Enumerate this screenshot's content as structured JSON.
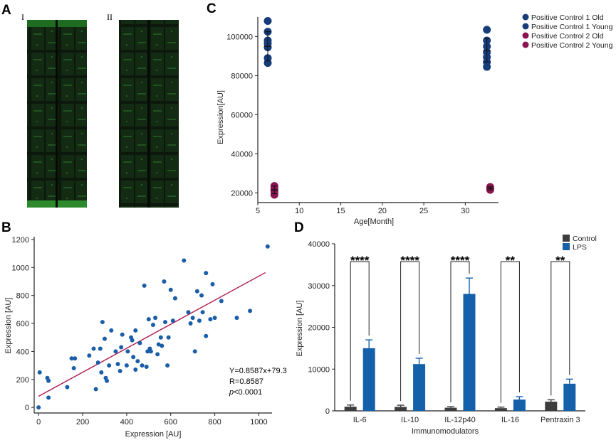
{
  "panels": {
    "A": {
      "letter": "A",
      "image_labels": [
        "I",
        "II"
      ]
    },
    "B": {
      "letter": "B"
    },
    "C": {
      "letter": "C"
    },
    "D": {
      "letter": "D"
    }
  },
  "colors": {
    "blue": "#1a5da8",
    "navy": "#173c7a",
    "magenta": "#8a1450",
    "fit_line": "#b0184e",
    "control_bar": "#3d3d3d",
    "lps_bar": "#1560aa",
    "array_bg": "#0d1a0d",
    "array_spot": "#2a6a2a"
  },
  "chart_data": [
    {
      "id": "B",
      "type": "scatter",
      "xlabel": "Expression [AU]",
      "ylabel": "Expression [AU]",
      "xlim": [
        -20,
        1060
      ],
      "ylim": [
        -40,
        1220
      ],
      "xticks": [
        0,
        200,
        400,
        600,
        800,
        1000
      ],
      "yticks": [
        0,
        200,
        400,
        600,
        800,
        1000,
        1200
      ],
      "fit": {
        "slope": 0.8587,
        "intercept": 79.3,
        "x_range": [
          0,
          1030
        ]
      },
      "annotations": [
        "Y=0.8587x+79.3",
        "R=0.8587",
        "p",
        "<0.0001"
      ],
      "points": [
        [
          0,
          0
        ],
        [
          5,
          250
        ],
        [
          40,
          210
        ],
        [
          45,
          190
        ],
        [
          45,
          70
        ],
        [
          130,
          145
        ],
        [
          150,
          350
        ],
        [
          160,
          280
        ],
        [
          165,
          350
        ],
        [
          230,
          370
        ],
        [
          250,
          420
        ],
        [
          260,
          130
        ],
        [
          270,
          320
        ],
        [
          280,
          420
        ],
        [
          285,
          250
        ],
        [
          290,
          610
        ],
        [
          300,
          490
        ],
        [
          305,
          210
        ],
        [
          310,
          190
        ],
        [
          320,
          300
        ],
        [
          330,
          550
        ],
        [
          350,
          400
        ],
        [
          360,
          310
        ],
        [
          370,
          260
        ],
        [
          375,
          430
        ],
        [
          380,
          520
        ],
        [
          400,
          300
        ],
        [
          405,
          400
        ],
        [
          420,
          500
        ],
        [
          425,
          480
        ],
        [
          430,
          360
        ],
        [
          440,
          270
        ],
        [
          440,
          550
        ],
        [
          450,
          330
        ],
        [
          460,
          460
        ],
        [
          470,
          300
        ],
        [
          480,
          870
        ],
        [
          490,
          290
        ],
        [
          495,
          400
        ],
        [
          500,
          630
        ],
        [
          505,
          420
        ],
        [
          510,
          400
        ],
        [
          520,
          590
        ],
        [
          530,
          640
        ],
        [
          540,
          380
        ],
        [
          545,
          450
        ],
        [
          555,
          500
        ],
        [
          560,
          440
        ],
        [
          570,
          900
        ],
        [
          575,
          610
        ],
        [
          585,
          300
        ],
        [
          590,
          500
        ],
        [
          600,
          840
        ],
        [
          610,
          620
        ],
        [
          620,
          780
        ],
        [
          660,
          1050
        ],
        [
          680,
          680
        ],
        [
          690,
          600
        ],
        [
          700,
          640
        ],
        [
          710,
          400
        ],
        [
          720,
          830
        ],
        [
          730,
          620
        ],
        [
          740,
          800
        ],
        [
          745,
          680
        ],
        [
          760,
          510
        ],
        [
          760,
          960
        ],
        [
          780,
          630
        ],
        [
          790,
          880
        ],
        [
          800,
          640
        ],
        [
          830,
          760
        ],
        [
          900,
          640
        ],
        [
          960,
          690
        ],
        [
          1040,
          1150
        ]
      ]
    },
    {
      "id": "C",
      "type": "scatter",
      "xlabel": "Age[Month]",
      "ylabel": "Expression[AU]",
      "xlim": [
        5,
        34
      ],
      "ylim": [
        15000,
        110000
      ],
      "xticks": [
        5,
        10,
        15,
        20,
        25,
        30
      ],
      "yticks": [
        20000,
        40000,
        60000,
        80000,
        100000
      ],
      "series": [
        {
          "name": "Positive Control 1 Old",
          "color": "#173c7a",
          "points": [
            [
              32.6,
              103500
            ],
            [
              32.6,
              98000
            ],
            [
              32.6,
              95000
            ],
            [
              32.6,
              92000
            ],
            [
              32.6,
              89500
            ],
            [
              32.6,
              87000
            ],
            [
              32.6,
              84500
            ]
          ],
          "mean_x": 32.6,
          "mean": 93000,
          "sd": 6000
        },
        {
          "name": "Positive Control 1 Young",
          "color": "#173c7a",
          "points": [
            [
              6.2,
              108000
            ],
            [
              6.2,
              102500
            ],
            [
              6.2,
              98000
            ],
            [
              6.2,
              96500
            ],
            [
              6.2,
              94500
            ],
            [
              6.2,
              89000
            ],
            [
              6.2,
              86500
            ]
          ],
          "mean_x": 6.2,
          "mean": 95000,
          "sd": 7500
        },
        {
          "name": "Positive Control 2 Old",
          "color": "#8a1450",
          "points": [
            [
              33.0,
              23000
            ],
            [
              33.0,
              22000
            ],
            [
              33.0,
              21500
            ]
          ],
          "mean_x": 33.0,
          "mean": 22300,
          "sd": 800
        },
        {
          "name": "Positive Control 2 Young",
          "color": "#8a1450",
          "points": [
            [
              7.0,
              23500
            ],
            [
              7.0,
              22500
            ],
            [
              7.0,
              21500
            ],
            [
              7.0,
              20500
            ],
            [
              7.0,
              19000
            ]
          ],
          "mean_x": 7.0,
          "mean": 21500,
          "sd": 2000
        }
      ]
    },
    {
      "id": "D",
      "type": "bar",
      "xlabel": "Immunomodulators",
      "ylabel": "Expression [AU]",
      "ylim": [
        0,
        40000
      ],
      "yticks": [
        0,
        10000,
        20000,
        30000,
        40000
      ],
      "categories": [
        "IL-6",
        "IL-10",
        "IL-12p40",
        "IL-16",
        "Pentraxin 3"
      ],
      "series": [
        {
          "name": "Control",
          "color": "#3d3d3d",
          "values": [
            1000,
            950,
            750,
            650,
            2200
          ],
          "errors": [
            400,
            400,
            250,
            250,
            450
          ]
        },
        {
          "name": "LPS",
          "color": "#1560aa",
          "values": [
            15000,
            11200,
            28000,
            2700,
            6500
          ],
          "errors": [
            2000,
            1400,
            3800,
            700,
            1100
          ]
        }
      ],
      "significance": [
        "****",
        "****",
        "****",
        "**",
        "**"
      ]
    }
  ]
}
